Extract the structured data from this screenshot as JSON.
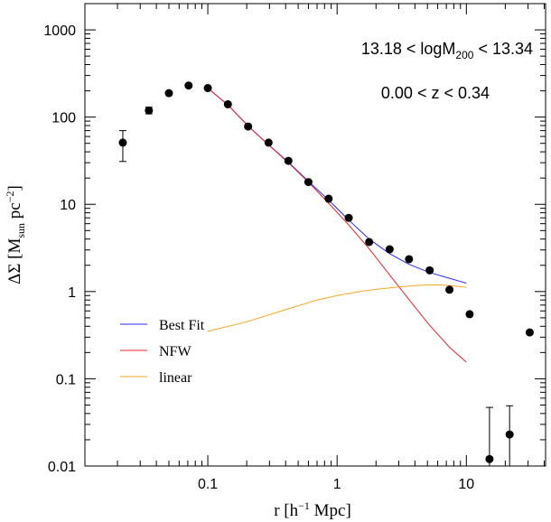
{
  "chart_data": {
    "type": "scatter",
    "title": "",
    "xlabel": "r [h⁻¹ Mpc]",
    "ylabel": "ΔΣ [M_sun pc⁻²]",
    "ylabel_parts": {
      "main": "ΔΣ  [M",
      "sub": "sun",
      "mid": "  pc",
      "sup": "−2",
      "end": "]"
    },
    "xlabel_parts": {
      "main": "r  [h",
      "sup": "−1",
      "end": " Mpc]"
    },
    "xscale": "log",
    "yscale": "log",
    "xlim": [
      0.0112,
      41
    ],
    "ylim": [
      0.01,
      2000
    ],
    "x_ticks": [
      {
        "value": 0.1,
        "label": "0.1"
      },
      {
        "value": 1,
        "label": "1"
      },
      {
        "value": 10,
        "label": "10"
      }
    ],
    "y_ticks": [
      {
        "value": 0.01,
        "label": "0.01"
      },
      {
        "value": 0.1,
        "label": "0.1"
      },
      {
        "value": 1,
        "label": "1"
      },
      {
        "value": 10,
        "label": "10"
      },
      {
        "value": 100,
        "label": "100"
      },
      {
        "value": 1000,
        "label": "1000"
      }
    ],
    "grid": false,
    "annotations": [
      {
        "text": "13.18 < logM",
        "sub": "200",
        "tail": " < 13.34"
      },
      {
        "text": "0.00 < z < 0.34"
      }
    ],
    "points": [
      {
        "x": 0.022,
        "y": 51,
        "ylo": 31,
        "yhi": 70
      },
      {
        "x": 0.035,
        "y": 119,
        "ylo": 109,
        "yhi": 130
      },
      {
        "x": 0.05,
        "y": 188
      },
      {
        "x": 0.071,
        "y": 230
      },
      {
        "x": 0.1,
        "y": 215
      },
      {
        "x": 0.143,
        "y": 140
      },
      {
        "x": 0.205,
        "y": 78
      },
      {
        "x": 0.295,
        "y": 51
      },
      {
        "x": 0.42,
        "y": 31.5
      },
      {
        "x": 0.6,
        "y": 18
      },
      {
        "x": 0.86,
        "y": 11.6
      },
      {
        "x": 1.23,
        "y": 7.0
      },
      {
        "x": 1.77,
        "y": 3.7
      },
      {
        "x": 2.55,
        "y": 3.05
      },
      {
        "x": 3.6,
        "y": 2.35
      },
      {
        "x": 5.2,
        "y": 1.75
      },
      {
        "x": 7.4,
        "y": 1.05
      },
      {
        "x": 10.6,
        "y": 0.55
      },
      {
        "x": 15.1,
        "y": 0.012,
        "ylo": 0.0095,
        "yhi": 0.047
      },
      {
        "x": 21.6,
        "y": 0.023,
        "ylo": 0.0095,
        "yhi": 0.049
      },
      {
        "x": 30.9,
        "y": 0.34
      }
    ],
    "series": [
      {
        "name": "Best Fit",
        "color": "#2a2af0",
        "x": [
          0.1,
          0.143,
          0.205,
          0.295,
          0.42,
          0.6,
          0.86,
          1.23,
          1.77,
          2.55,
          3.6,
          5.2,
          7.4,
          10
        ],
        "y": [
          215,
          138,
          79,
          48,
          30.5,
          18.4,
          11.2,
          6.6,
          4.0,
          2.72,
          2.05,
          1.65,
          1.42,
          1.25
        ]
      },
      {
        "name": "NFW",
        "color": "#e8232b",
        "x": [
          0.1,
          0.143,
          0.205,
          0.295,
          0.42,
          0.6,
          0.86,
          1.23,
          1.77,
          2.55,
          3.6,
          5.2,
          7.4,
          10
        ],
        "y": [
          215,
          138,
          79,
          48,
          30,
          18,
          10.3,
          5.8,
          3.1,
          1.55,
          0.81,
          0.41,
          0.23,
          0.155
        ]
      },
      {
        "name": "linear",
        "color": "#f5a623",
        "x": [
          0.1,
          0.2,
          0.4,
          0.7,
          1,
          1.5,
          2,
          3,
          4,
          5,
          6,
          7,
          8,
          10
        ],
        "y": [
          0.35,
          0.45,
          0.62,
          0.8,
          0.9,
          1.0,
          1.06,
          1.13,
          1.17,
          1.19,
          1.19,
          1.18,
          1.16,
          1.12
        ]
      }
    ],
    "legend": {
      "position": "bottom-left",
      "entries": [
        "Best Fit",
        "NFW",
        "linear"
      ]
    }
  }
}
